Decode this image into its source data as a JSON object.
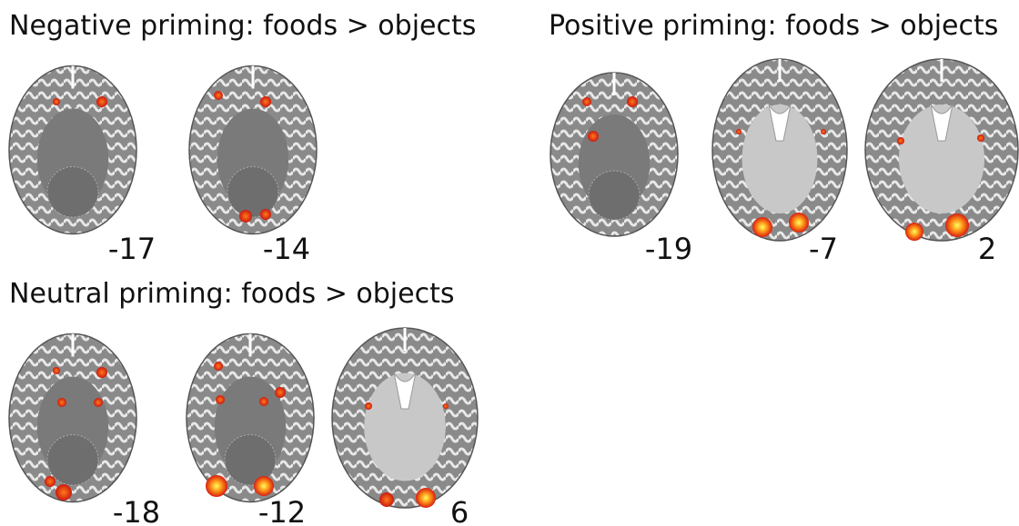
{
  "panels": [
    {
      "title": "Negative priming: foods > objects",
      "slices": [
        "-17",
        "-14"
      ]
    },
    {
      "title": "Positive priming: foods > objects",
      "slices": [
        "-19",
        "-7",
        "2"
      ]
    },
    {
      "title": "Neutral priming: foods > objects",
      "slices": [
        "-18",
        "-12",
        "6"
      ]
    }
  ]
}
